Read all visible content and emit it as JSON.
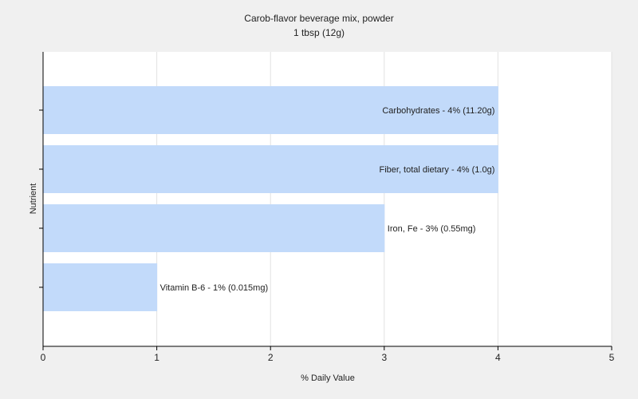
{
  "chart_data": {
    "type": "bar",
    "orientation": "horizontal",
    "title": "Carob-flavor beverage mix, powder",
    "subtitle": "1 tbsp (12g)",
    "xlabel": "% Daily Value",
    "ylabel": "Nutrient",
    "xlim": [
      0,
      5
    ],
    "xticks": [
      "0",
      "1",
      "2",
      "3",
      "4",
      "5"
    ],
    "grid": true,
    "categories": [
      "Carbohydrates",
      "Fiber, total dietary",
      "Iron, Fe",
      "Vitamin B-6"
    ],
    "values": [
      4,
      4,
      3,
      1
    ],
    "labels": [
      "Carbohydrates - 4% (11.20g)",
      "Fiber, total dietary - 4% (1.0g)",
      "Iron, Fe - 3% (0.55mg)",
      "Vitamin B-6 - 1% (0.015mg)"
    ],
    "colors": {
      "bar": "#c2dafa",
      "plot_bg": "#ffffff",
      "page_bg": "#f0f0f0",
      "grid": "#e2e2e2",
      "axis": "#000000"
    }
  }
}
